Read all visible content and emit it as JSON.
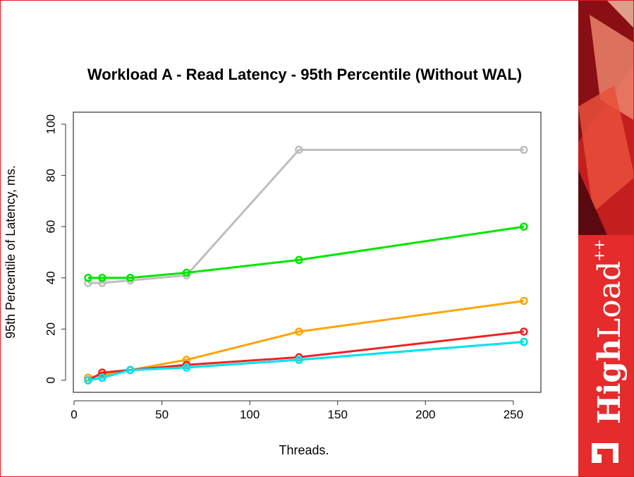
{
  "chart_data": {
    "type": "line",
    "title": "Workload A - Read Latency - 95th Percentile (Without WAL)",
    "x_label": "Threads.",
    "y_label": "95th Percentile of Latency, ms.",
    "x": [
      8,
      16,
      32,
      64,
      128,
      256
    ],
    "series": [
      {
        "color": "#bebebe",
        "values": [
          38,
          38,
          39,
          41,
          90,
          90
        ]
      },
      {
        "color": "#00e600",
        "values": [
          40,
          40,
          40,
          42,
          47,
          60
        ]
      },
      {
        "color": "#ffa500",
        "values": [
          1,
          2,
          4,
          8,
          19,
          31
        ]
      },
      {
        "color": "#ee2222",
        "values": [
          0,
          3,
          4,
          6,
          9,
          19
        ]
      },
      {
        "color": "#1e90ff",
        "values": [
          0,
          1,
          4,
          5,
          8,
          15
        ]
      },
      {
        "color": "#00e5ee",
        "values": [
          0,
          1,
          4,
          5,
          8,
          15
        ]
      }
    ],
    "xlim": [
      -0.4,
      265.7
    ],
    "ylim": [
      -4.7,
      104.7
    ],
    "xticks": [
      0,
      50,
      100,
      150,
      200,
      250
    ],
    "yticks": [
      0,
      20,
      40,
      60,
      80,
      100
    ]
  },
  "slide": {
    "brand": {
      "high": "High",
      "load": "Load",
      "sup": "++"
    }
  }
}
